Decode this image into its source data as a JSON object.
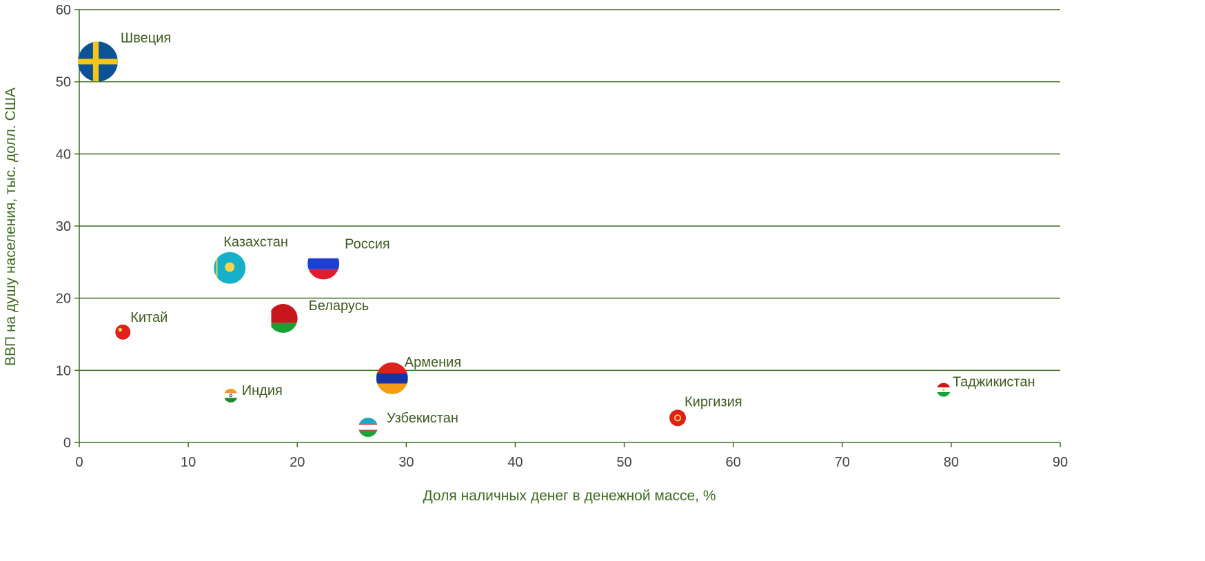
{
  "chart_data": {
    "type": "scatter",
    "title": "",
    "xlabel": "Доля наличных денег в денежной массе, %",
    "ylabel": "ВВП на душу населения, тыс.  долл. США",
    "xlim": [
      0,
      90
    ],
    "ylim": [
      0,
      60
    ],
    "xticks": [
      0,
      10,
      20,
      30,
      40,
      50,
      60,
      70,
      80,
      90
    ],
    "yticks": [
      0,
      10,
      20,
      30,
      40,
      50,
      60
    ],
    "grid": "horizontal",
    "legend": "none",
    "points": [
      {
        "name": "Швеция",
        "x": 1.7,
        "y": 52.8,
        "flag": "sweden"
      },
      {
        "name": "Казахстан",
        "x": 13.8,
        "y": 24.2,
        "flag": "kazakhstan"
      },
      {
        "name": "Россия",
        "x": 22.4,
        "y": 24.8,
        "flag": "russia"
      },
      {
        "name": "Беларусь",
        "x": 18.7,
        "y": 17.2,
        "flag": "belarus"
      },
      {
        "name": "Китай",
        "x": 4.0,
        "y": 15.3,
        "flag": "china"
      },
      {
        "name": "Армения",
        "x": 28.7,
        "y": 8.9,
        "flag": "armenia"
      },
      {
        "name": "Индия",
        "x": 13.9,
        "y": 6.5,
        "flag": "india"
      },
      {
        "name": "Узбекистан",
        "x": 26.5,
        "y": 2.1,
        "flag": "uzbekistan"
      },
      {
        "name": "Киргизия",
        "x": 54.9,
        "y": 3.4,
        "flag": "kyrgyzstan"
      },
      {
        "name": "Таджикистан",
        "x": 79.3,
        "y": 7.3,
        "flag": "tajikistan"
      }
    ],
    "colors": {
      "axis": "#3d6b1f",
      "grid": "#3d6b1f",
      "label": "#3d5a1f",
      "tick": "#404040"
    }
  }
}
